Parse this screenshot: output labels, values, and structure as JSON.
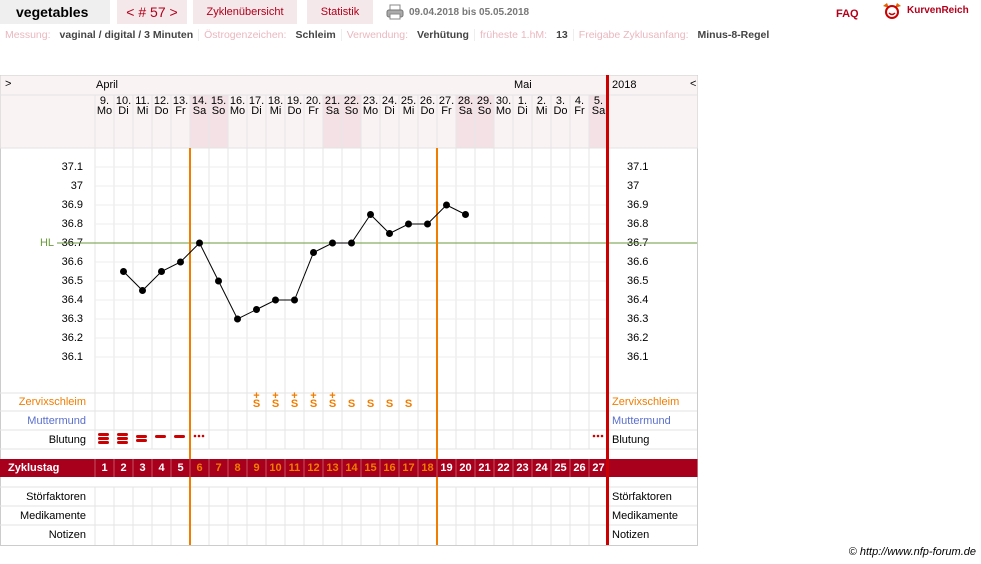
{
  "header": {
    "user": "vegetables",
    "cycle": "< # 57 >",
    "tabs": [
      "Zyklenübersicht",
      "Statistik"
    ],
    "period": "09.04.2018 bis 05.05.2018",
    "faq": "FAQ",
    "logo": "KurvenReich"
  },
  "info": [
    {
      "label": "Messung:",
      "value": "vaginal / digital / 3 Minuten"
    },
    {
      "label": "Östrogenzeichen:",
      "value": "Schleim"
    },
    {
      "label": "Verwendung:",
      "value": "Verhütung"
    },
    {
      "label": "früheste 1.hM:",
      "value": "13"
    },
    {
      "label": "Freigabe Zyklusanfang:",
      "value": "Minus-8-Regel"
    }
  ],
  "chart_data": {
    "type": "line",
    "nav_prev": ">",
    "nav_next": "<",
    "year": "2018",
    "month_labels": [
      "April",
      null,
      null,
      null,
      null,
      null,
      null,
      null,
      null,
      null,
      null,
      null,
      null,
      null,
      null,
      null,
      null,
      null,
      null,
      null,
      null,
      null,
      "Mai",
      null,
      null,
      null,
      null
    ],
    "categories": [
      "9.",
      "10.",
      "11.",
      "12.",
      "13.",
      "14.",
      "15.",
      "16.",
      "17.",
      "18.",
      "19.",
      "20.",
      "21.",
      "22.",
      "23.",
      "24.",
      "25.",
      "26.",
      "27.",
      "28.",
      "29.",
      "30.",
      "1.",
      "2.",
      "3.",
      "4.",
      "5."
    ],
    "weekdays": [
      "Mo",
      "Di",
      "Mi",
      "Do",
      "Fr",
      "Sa",
      "So",
      "Mo",
      "Di",
      "Mi",
      "Do",
      "Fr",
      "Sa",
      "So",
      "Mo",
      "Di",
      "Mi",
      "Do",
      "Fr",
      "Sa",
      "So",
      "Mo",
      "Di",
      "Mi",
      "Do",
      "Fr",
      "Sa"
    ],
    "shaded": [
      false,
      false,
      false,
      false,
      false,
      true,
      true,
      false,
      false,
      false,
      false,
      false,
      true,
      true,
      false,
      false,
      false,
      false,
      false,
      true,
      true,
      false,
      false,
      false,
      false,
      false,
      true
    ],
    "values": [
      null,
      36.55,
      36.45,
      36.55,
      36.6,
      36.7,
      36.5,
      36.3,
      36.35,
      36.4,
      36.4,
      36.65,
      36.7,
      36.7,
      36.85,
      36.75,
      36.8,
      36.8,
      36.9,
      36.85,
      null,
      null,
      null,
      null,
      null,
      null,
      null
    ],
    "color": "#000000",
    "ylim": [
      35.9,
      37.2
    ],
    "yticks": [
      36.1,
      36.2,
      36.3,
      36.4,
      36.5,
      36.6,
      36.7,
      36.8,
      36.9,
      37,
      37.1
    ],
    "hl": {
      "label": "HL",
      "value": 36.7,
      "color": "#6b9a3c"
    },
    "highlight_days": [
      6,
      18
    ],
    "highlight_color": "#f07d00",
    "row_labels": {
      "mucus": "Zervixschleim",
      "cervix": "Muttermund",
      "bleeding": "Blutung",
      "cycle_day": "Zyklustag",
      "extra": [
        "Störfaktoren",
        "Medikamente",
        "Notizen"
      ]
    },
    "mucus_plus": [
      null,
      null,
      null,
      null,
      null,
      null,
      null,
      null,
      "+",
      "+",
      "+",
      "+",
      "+",
      null,
      null,
      null,
      null,
      null,
      null,
      null,
      null,
      null,
      null,
      null,
      null,
      null,
      null
    ],
    "mucus": [
      null,
      null,
      null,
      null,
      null,
      null,
      null,
      null,
      "S",
      "S",
      "S",
      "S",
      "S",
      "S",
      "S",
      "S",
      "S",
      null,
      null,
      null,
      null,
      null,
      null,
      null,
      null,
      null,
      null
    ],
    "cycle_days": [
      1,
      2,
      3,
      4,
      5,
      6,
      7,
      8,
      9,
      10,
      11,
      12,
      13,
      14,
      15,
      16,
      17,
      18,
      19,
      20,
      21,
      22,
      23,
      24,
      25,
      26,
      27
    ]
  },
  "footer": "© http://www.nfp-forum.de"
}
